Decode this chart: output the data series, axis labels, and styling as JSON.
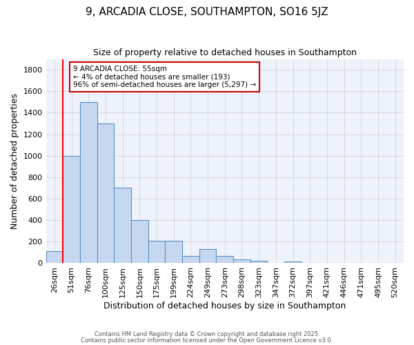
{
  "title": "9, ARCADIA CLOSE, SOUTHAMPTON, SO16 5JZ",
  "subtitle": "Size of property relative to detached houses in Southampton",
  "xlabel": "Distribution of detached houses by size in Southampton",
  "ylabel": "Number of detached properties",
  "bar_color": "#c5d8f0",
  "bar_edge_color": "#5a8fc0",
  "background_color": "#eef2fb",
  "grid_color": "#cccccc",
  "categories": [
    "26sqm",
    "51sqm",
    "76sqm",
    "100sqm",
    "125sqm",
    "150sqm",
    "175sqm",
    "199sqm",
    "224sqm",
    "249sqm",
    "273sqm",
    "298sqm",
    "323sqm",
    "347sqm",
    "372sqm",
    "397sqm",
    "421sqm",
    "446sqm",
    "471sqm",
    "495sqm",
    "520sqm"
  ],
  "values": [
    110,
    1000,
    1500,
    1300,
    700,
    400,
    210,
    210,
    70,
    130,
    70,
    35,
    20,
    5,
    15,
    5,
    0,
    5,
    0,
    0,
    0
  ],
  "red_line_x": 1,
  "ylim": [
    0,
    1900
  ],
  "yticks": [
    0,
    200,
    400,
    600,
    800,
    1000,
    1200,
    1400,
    1600,
    1800
  ],
  "annotation_text": "9 ARCADIA CLOSE: 55sqm\n← 4% of detached houses are smaller (193)\n96% of semi-detached houses are larger (5,297) →",
  "annotation_box_color": "#ffffff",
  "annotation_box_edge": "#cc0000",
  "footnote1": "Contains HM Land Registry data © Crown copyright and database right 2025.",
  "footnote2": "Contains public sector information licensed under the Open Government Licence v3.0."
}
